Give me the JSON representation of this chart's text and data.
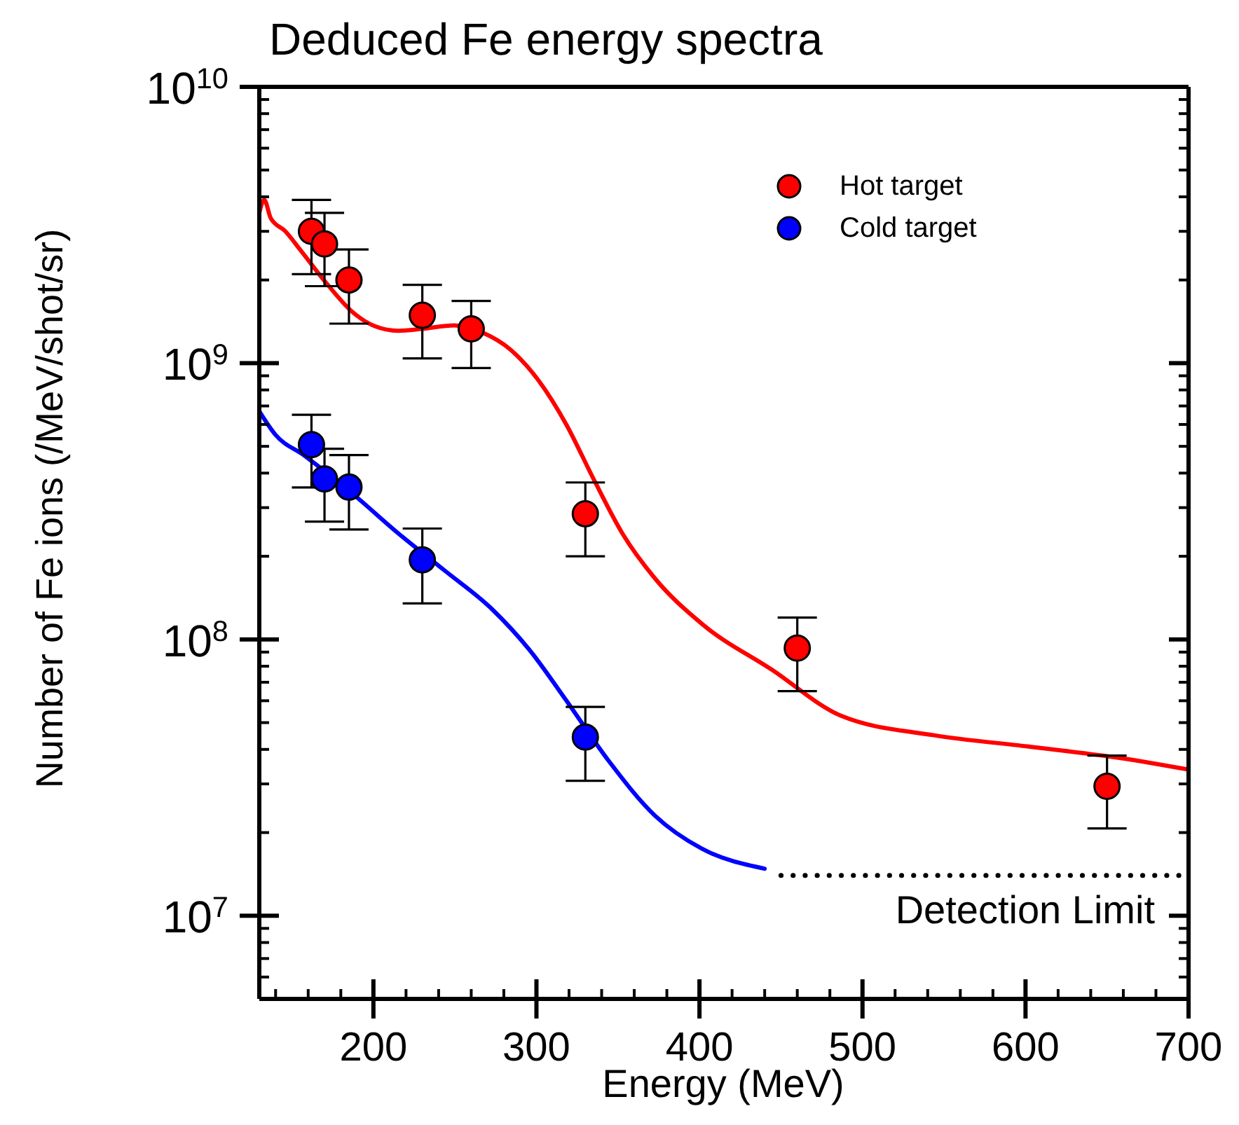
{
  "chart_data": {
    "type": "scatter",
    "title": "Deduced Fe energy spectra",
    "xlabel": "Energy (MeV)",
    "ylabel": "Number of Fe ions (/MeV/shot/sr)",
    "log": "y",
    "legend": "top right",
    "marker": "circle",
    "line_style": "solid",
    "xlim": [
      130,
      700
    ],
    "xticks": [
      {
        "value": 140,
        "label": null
      },
      {
        "value": 160,
        "label": null
      },
      {
        "value": 180,
        "label": null
      },
      200,
      {
        "value": 220,
        "label": null
      },
      {
        "value": 240,
        "label": null
      },
      {
        "value": 260,
        "label": null
      },
      {
        "value": 280,
        "label": null
      },
      300,
      {
        "value": 320,
        "label": null
      },
      {
        "value": 340,
        "label": null
      },
      {
        "value": 360,
        "label": null
      },
      {
        "value": 380,
        "label": null
      },
      400,
      {
        "value": 420,
        "label": null
      },
      {
        "value": 440,
        "label": null
      },
      {
        "value": 460,
        "label": null
      },
      {
        "value": 480,
        "label": null
      },
      500,
      {
        "value": 520,
        "label": null
      },
      {
        "value": 540,
        "label": null
      },
      {
        "value": 560,
        "label": null
      },
      {
        "value": 580,
        "label": null
      },
      600,
      {
        "value": 620,
        "label": null
      },
      {
        "value": 640,
        "label": null
      },
      {
        "value": 660,
        "label": null
      },
      {
        "value": 680,
        "label": null
      },
      700
    ],
    "ylim": [
      5000000,
      10000000000
    ],
    "yticks": [
      {
        "value": 6000000,
        "label": null
      },
      {
        "value": 7000000,
        "label": null
      },
      {
        "value": 8000000,
        "label": null
      },
      {
        "value": 9000000,
        "label": null
      },
      {
        "value": 10000000,
        "label": "10$^{7}$"
      },
      {
        "value": 20000000,
        "label": null
      },
      {
        "value": 30000000,
        "label": null
      },
      {
        "value": 40000000,
        "label": null
      },
      {
        "value": 50000000,
        "label": null
      },
      {
        "value": 60000000,
        "label": null
      },
      {
        "value": 70000000,
        "label": null
      },
      {
        "value": 80000000,
        "label": null
      },
      {
        "value": 90000000,
        "label": null
      },
      {
        "value": 100000000,
        "label": "10$^{8}$"
      },
      {
        "value": 200000000,
        "label": null
      },
      {
        "value": 300000000,
        "label": null
      },
      {
        "value": 400000000,
        "label": null
      },
      {
        "value": 500000000,
        "label": null
      },
      {
        "value": 600000000,
        "label": null
      },
      {
        "value": 700000000,
        "label": null
      },
      {
        "value": 800000000,
        "label": null
      },
      {
        "value": 900000000,
        "label": null
      },
      {
        "value": 1000000000,
        "label": "10$^{9}$"
      },
      {
        "value": 2000000000,
        "label": null
      },
      {
        "value": 3000000000,
        "label": null
      },
      {
        "value": 4000000000,
        "label": null
      },
      {
        "value": 5000000000,
        "label": null
      },
      {
        "value": 6000000000,
        "label": null
      },
      {
        "value": 7000000000,
        "label": null
      },
      {
        "value": 8000000000,
        "label": null
      },
      {
        "value": 9000000000,
        "label": null
      },
      {
        "value": 10000000000,
        "label": "10$^{10}$"
      }
    ],
    "annotations": [
      {
        "text": "Detection Limit",
        "x": 700,
        "y": 14000000
      }
    ],
    "series": [
      {
        "name": "Hot target",
        "color": "#ff0000",
        "x": [
          162,
          170,
          185,
          230,
          260,
          330,
          460,
          650
        ],
        "values": [
          3000000000.0,
          2700000000.0,
          2000000000.0,
          1490000000.0,
          1330000000.0,
          285000000.0,
          93000000.0,
          29400000.0
        ],
        "errors": [
          [
            2100000000.0,
            3900000000.0
          ],
          [
            1900000000.0,
            3500000000.0
          ],
          [
            1390000000.0,
            2580000000.0
          ],
          [
            1040000000.0,
            1920000000.0
          ],
          [
            960000000.0,
            1680000000.0
          ],
          [
            200000000.0,
            370000000.0
          ],
          [
            65000000.0,
            120000000.0
          ],
          [
            20700000.0,
            38000000.0
          ]
        ]
      },
      {
        "name": "Cold target",
        "color": "#0000ff",
        "x": [
          162,
          170,
          185,
          230,
          330
        ],
        "values": [
          507000000.0,
          381000000.0,
          356000000.0,
          194000000.0,
          44300000.0
        ],
        "errors": [
          [
            355000000.0,
            650000000.0
          ],
          [
            267000000.0,
            490000000.0
          ],
          [
            250000000.0,
            465000000.0
          ],
          [
            135000000.0,
            252000000.0
          ],
          [
            30800000.0,
            57000000.0
          ]
        ]
      },
      {
        "type": "line",
        "marker": "none",
        "color": "#ff0000",
        "x": [
          130,
          133,
          137,
          146,
          155.6,
          171.4,
          186.7,
          201,
          215.3,
          229.6,
          249.7,
          266.9,
          284,
          301,
          318.3,
          335.5,
          352.7,
          372.8,
          401.4,
          444.4,
          486.6,
          543.9,
          601.2,
          658.5,
          700
        ],
        "values": [
          3500000000.0,
          3900000000.0,
          3350000000.0,
          3000000000.0,
          2550000000.0,
          1940000000.0,
          1540000000.0,
          1360000000.0,
          1310000000.0,
          1330000000.0,
          1370000000.0,
          1290000000.0,
          1120000000.0,
          870000000.0,
          600000000.0,
          376000000.0,
          242000000.0,
          166000000.0,
          114000000.0,
          77700000.0,
          53000000.0,
          45000000.0,
          41000000.0,
          37200000.0,
          33800000.0
        ]
      },
      {
        "type": "line",
        "marker": "none",
        "color": "#0000ff",
        "x": [
          130,
          140,
          157.2,
          186.7,
          215.3,
          244,
          272.6,
          295.5,
          318.4,
          344.1,
          372.8,
          401.4,
          440
        ],
        "values": [
          670000000.0,
          550000000.0,
          465000000.0,
          339000000.0,
          242000000.0,
          177000000.0,
          129000000.0,
          92000000.0,
          60000000.0,
          36500000.0,
          23000000.0,
          17500000.0,
          14800000.0
        ]
      },
      {
        "type": "line",
        "marker": "none",
        "color": "#000000",
        "line_style": "dotted",
        "x": [
          450,
          700
        ],
        "values": [
          14000000,
          14000000
        ]
      }
    ]
  }
}
